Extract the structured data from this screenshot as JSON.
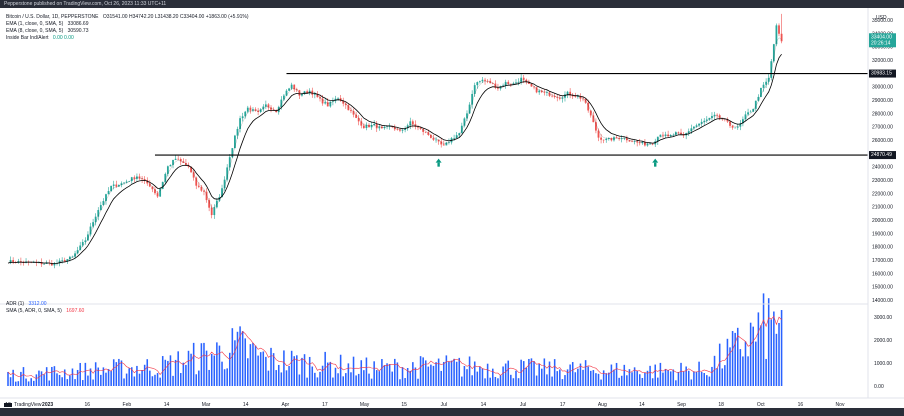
{
  "publisher": "Pepperstone published on TradingView.com, Oct 26, 2023 11:33 UTC+11",
  "legend_main": {
    "symbol": "Bitcoin / U.S. Dollar, 1D, PEPPERSTONE",
    "ohlc": "O31541.00 H34742.20 L31438.20 C33404.00 +1863.00 (+5.91%)",
    "ema1": "EMA (1, close, 0, SMA, 5)",
    "ema1_val": "33086.69",
    "ema2": "EMA (8, close, 0, SMA, 5)",
    "ema2_val": "30590.73",
    "insidebar": "Inside Bar Ind/Alert",
    "insidebar_val": "0.00 0.00"
  },
  "legend_adr": {
    "adr": "ADR (1)",
    "adr_val": "3312.00",
    "sma": "SMA (5, ADR, 0, SMA, 5)",
    "sma_val": "1697.60"
  },
  "currency": "USD",
  "price_tag": {
    "value": "33404.00",
    "countdown": "20:26:14"
  },
  "resistance_tag": "30983.15",
  "support_tag": "24870.49",
  "logo": "TradingView",
  "colors": {
    "up": "#26a69a",
    "down": "#ef5350",
    "ema_fast": "#000000",
    "ema_slow": "#000000",
    "adr_bar": "#2962ff",
    "adr_sma": "#f23645",
    "level_line": "#000000",
    "arrow": "#089981"
  },
  "chart_data": [
    {
      "type": "candlestick",
      "x_tick_labels": [
        "12",
        "2023",
        "16",
        "Feb",
        "14",
        "Mar",
        "14",
        "Apr",
        "17",
        "May",
        "15",
        "Jul",
        "14",
        "Jul",
        "17",
        "Aug",
        "14",
        "Sep",
        "18",
        "Oct",
        "16",
        "Nov"
      ],
      "y_tick_labels": [
        "35000.00",
        "34000.00",
        "33000.00",
        "32000.00",
        "31000.00",
        "30000.00",
        "29000.00",
        "28000.00",
        "27000.00",
        "26000.00",
        "25000.00",
        "24000.00",
        "23000.00",
        "22000.00",
        "21000.00",
        "20000.00",
        "19000.00",
        "18000.00",
        "17000.00",
        "16000.00",
        "15000.00",
        "14000.00"
      ],
      "ylim": [
        14000,
        35000
      ],
      "levels": [
        30983.15,
        24870.49
      ],
      "arrows": [
        {
          "date": "Jun 15",
          "price": 24300
        },
        {
          "date": "Sep 11",
          "price": 24300
        }
      ],
      "anchors": [
        [
          0,
          16900
        ],
        [
          8,
          16800
        ],
        [
          18,
          16700
        ],
        [
          25,
          17200
        ],
        [
          30,
          18500
        ],
        [
          35,
          20800
        ],
        [
          40,
          22500
        ],
        [
          45,
          22800
        ],
        [
          50,
          23300
        ],
        [
          55,
          22600
        ],
        [
          58,
          21800
        ],
        [
          62,
          24000
        ],
        [
          65,
          24600
        ],
        [
          70,
          24000
        ],
        [
          73,
          22600
        ],
        [
          76,
          22100
        ],
        [
          79,
          20400
        ],
        [
          83,
          22300
        ],
        [
          86,
          24800
        ],
        [
          90,
          27600
        ],
        [
          93,
          28400
        ],
        [
          97,
          28000
        ],
        [
          100,
          28600
        ],
        [
          104,
          28200
        ],
        [
          107,
          29400
        ],
        [
          110,
          30100
        ],
        [
          113,
          29400
        ],
        [
          117,
          29700
        ],
        [
          121,
          29000
        ],
        [
          124,
          28600
        ],
        [
          128,
          29200
        ],
        [
          131,
          28600
        ],
        [
          135,
          27600
        ],
        [
          138,
          27000
        ],
        [
          142,
          27100
        ],
        [
          145,
          26800
        ],
        [
          149,
          27000
        ],
        [
          152,
          26600
        ],
        [
          156,
          27300
        ],
        [
          159,
          26900
        ],
        [
          163,
          26400
        ],
        [
          166,
          25900
        ],
        [
          169,
          25500
        ],
        [
          172,
          26100
        ],
        [
          175,
          26500
        ],
        [
          178,
          28000
        ],
        [
          181,
          30200
        ],
        [
          184,
          30500
        ],
        [
          187,
          30300
        ],
        [
          190,
          29900
        ],
        [
          193,
          30300
        ],
        [
          196,
          30200
        ],
        [
          199,
          30600
        ],
        [
          202,
          30100
        ],
        [
          205,
          29700
        ],
        [
          208,
          29500
        ],
        [
          211,
          29400
        ],
        [
          214,
          29200
        ],
        [
          217,
          29500
        ],
        [
          220,
          29300
        ],
        [
          223,
          29100
        ],
        [
          226,
          27800
        ],
        [
          229,
          26200
        ],
        [
          232,
          26000
        ],
        [
          235,
          26100
        ],
        [
          238,
          26200
        ],
        [
          241,
          26000
        ],
        [
          244,
          25800
        ],
        [
          247,
          25700
        ],
        [
          250,
          25800
        ],
        [
          253,
          26500
        ],
        [
          256,
          26200
        ],
        [
          259,
          26500
        ],
        [
          262,
          26300
        ],
        [
          265,
          26900
        ],
        [
          268,
          27200
        ],
        [
          271,
          27500
        ],
        [
          274,
          27800
        ],
        [
          277,
          27600
        ],
        [
          280,
          27100
        ],
        [
          283,
          26900
        ],
        [
          286,
          27800
        ],
        [
          289,
          28400
        ],
        [
          292,
          29800
        ],
        [
          295,
          30600
        ],
        [
          298,
          34500
        ],
        [
          300,
          33404
        ]
      ],
      "last_close": 33404,
      "series": [
        {
          "name": "EMA (1, close, 0, SMA, 5)"
        },
        {
          "name": "EMA (8, close, 0, SMA, 5)"
        }
      ]
    },
    {
      "type": "bar",
      "y_tick_labels": [
        "3000.00",
        "2000.00",
        "1000.00",
        "0.00"
      ],
      "ylim": [
        0,
        3400
      ],
      "anchors": [
        [
          0,
          500
        ],
        [
          30,
          700
        ],
        [
          60,
          900
        ],
        [
          80,
          1500
        ],
        [
          90,
          1800
        ],
        [
          100,
          1200
        ],
        [
          140,
          800
        ],
        [
          170,
          900
        ],
        [
          200,
          800
        ],
        [
          240,
          700
        ],
        [
          270,
          700
        ],
        [
          296,
          2900
        ],
        [
          300,
          3312
        ]
      ],
      "series": [
        {
          "name": "ADR (1)"
        },
        {
          "name": "SMA (5, ADR, 0, SMA, 5)"
        }
      ]
    }
  ]
}
